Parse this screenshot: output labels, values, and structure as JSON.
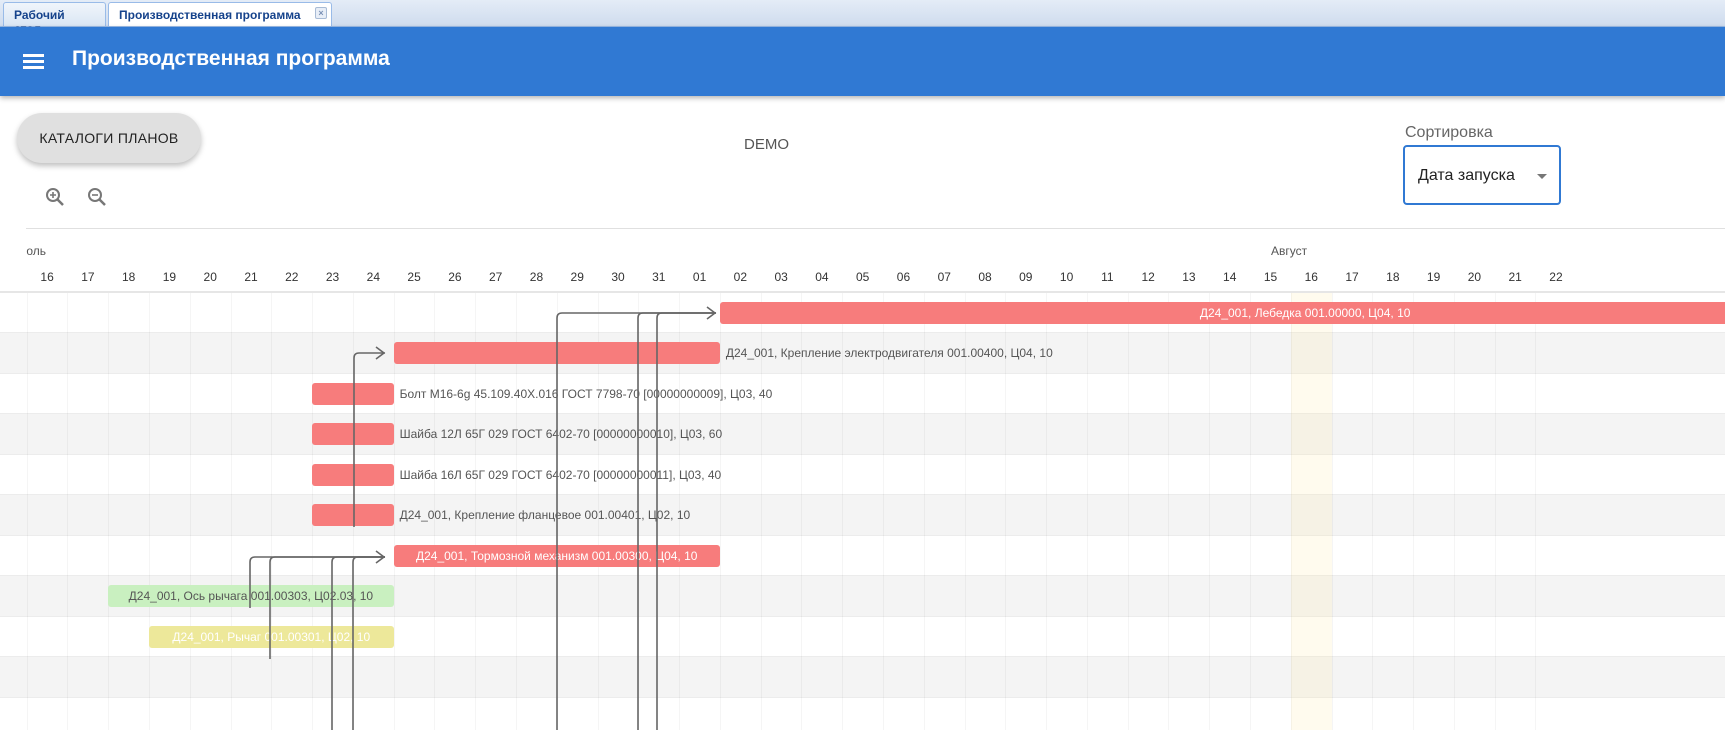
{
  "tabs": [
    {
      "label": "Рабочий стол",
      "active": false
    },
    {
      "label": "Производственная программа",
      "active": true,
      "close": "×"
    }
  ],
  "appbar": {
    "title": "Производственная программа",
    "menu_icon": "hamburger-icon"
  },
  "toolbar": {
    "catalog_button": "КАТАЛОГИ ПЛАНОВ",
    "demo_label": "DEMO",
    "zoom_in_icon": "zoom-in-icon",
    "zoom_out_icon": "zoom-out-icon"
  },
  "sort": {
    "label": "Сортировка",
    "value": "Дата запуска"
  },
  "timeline": {
    "months": [
      {
        "label": "Июль",
        "visible_text": "оль"
      },
      {
        "label": "Август"
      }
    ],
    "days": [
      "16",
      "17",
      "18",
      "19",
      "20",
      "21",
      "22",
      "23",
      "24",
      "25",
      "26",
      "27",
      "28",
      "29",
      "30",
      "31",
      "01",
      "02",
      "03",
      "04",
      "05",
      "06",
      "07",
      "08",
      "09",
      "10",
      "11",
      "12",
      "13",
      "14",
      "15",
      "16",
      "17",
      "18",
      "19",
      "20",
      "21",
      "22"
    ],
    "highlight_day": "08-16"
  },
  "colors": {
    "red": "#f77c7c",
    "green": "#c9f0c0",
    "yellow": "#ede89a",
    "accent": "#3079d3"
  },
  "tasks": [
    {
      "label": "Д24_001, Лебедка 001.00000, Ц04, 10",
      "start": "08-02",
      "end": null,
      "color": "red",
      "label_pos": "inside"
    },
    {
      "label": "Д24_001, Крепление электродвигателя 001.00400, Ц04, 10",
      "start": "07-25",
      "end": "08-01",
      "color": "red",
      "label_pos": "outside"
    },
    {
      "label": "Болт М16-6g 45.109.40Х.016 ГОСТ 7798-70 [00000000009], Ц03, 40",
      "start": "07-23",
      "end": "07-24",
      "color": "red",
      "label_pos": "outside"
    },
    {
      "label": "Шайба 12Л 65Г 029 ГОСТ 6402-70 [00000000010], Ц03, 60",
      "start": "07-23",
      "end": "07-24",
      "color": "red",
      "label_pos": "outside"
    },
    {
      "label": "Шайба 16Л 65Г 029 ГОСТ 6402-70 [00000000011], Ц03, 40",
      "start": "07-23",
      "end": "07-24",
      "color": "red",
      "label_pos": "outside"
    },
    {
      "label": "Д24_001, Крепление фланцевое 001.00401, Ц02, 10",
      "start": "07-23",
      "end": "07-24",
      "color": "red",
      "label_pos": "outside"
    },
    {
      "label": "Д24_001, Тормозной механизм 001.00300, Ц04, 10",
      "start": "07-25",
      "end": "08-01",
      "color": "red",
      "label_pos": "inside"
    },
    {
      "label": "Д24_001, Ось рычага 001.00303, Ц02.03, 10",
      "start": "07-18",
      "end": "07-24",
      "color": "green",
      "label_pos": "inside"
    },
    {
      "label": "Д24_001, Рычаг 001.00301, Ц02, 10",
      "start": "07-19",
      "end": "07-24",
      "color": "yellow",
      "label_pos": "inside"
    }
  ]
}
